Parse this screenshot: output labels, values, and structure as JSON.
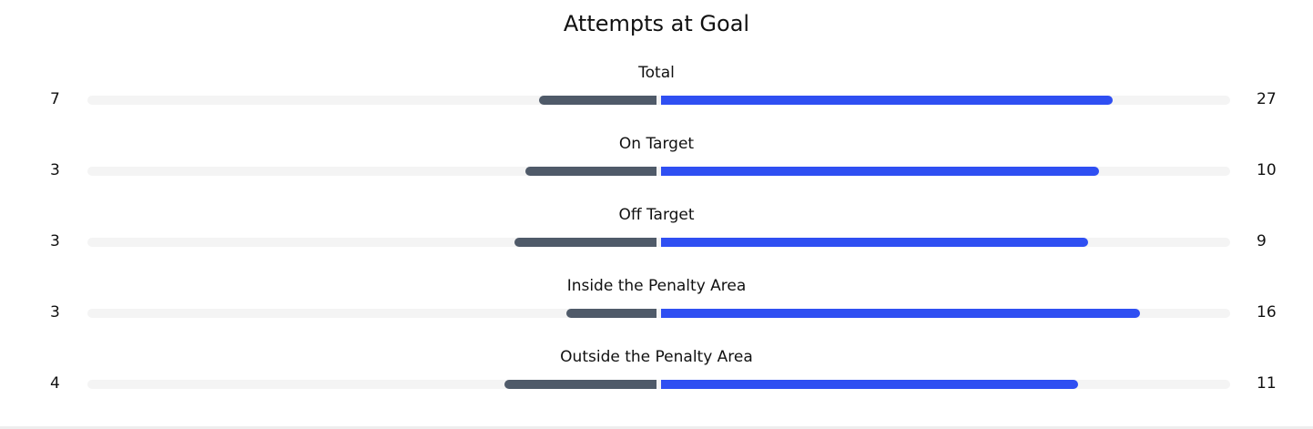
{
  "title": "Attempts at Goal",
  "rows": [
    {
      "label": "Total",
      "home": 7,
      "away": 27
    },
    {
      "label": "On Target",
      "home": 3,
      "away": 10
    },
    {
      "label": "Off Target",
      "home": 3,
      "away": 9
    },
    {
      "label": "Inside the Penalty Area",
      "home": 3,
      "away": 16
    },
    {
      "label": "Outside the Penalty Area",
      "home": 4,
      "away": 11
    }
  ],
  "colors": {
    "home": "#4f5a69",
    "away": "#2f4ff2",
    "track": "#f4f4f4"
  }
}
